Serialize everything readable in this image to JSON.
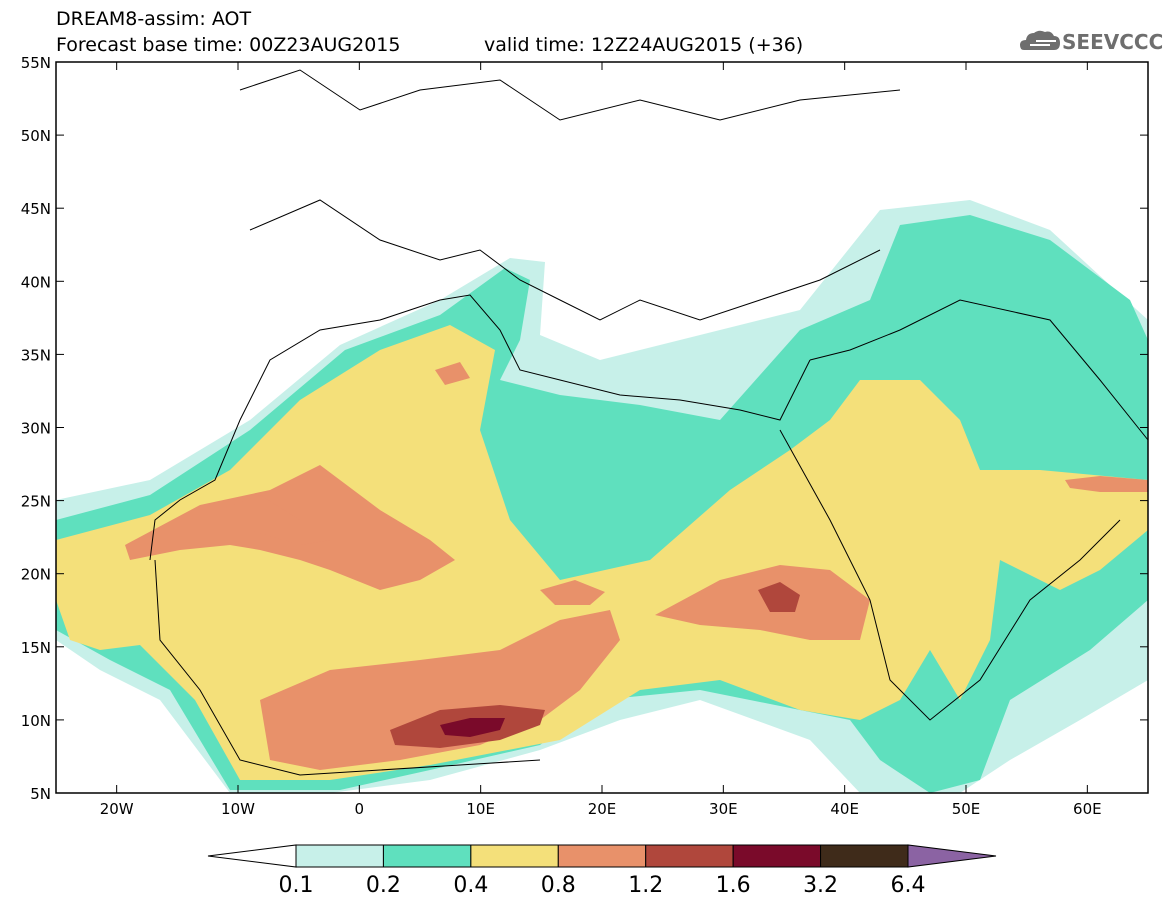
{
  "header": {
    "title_line1": "DREAM8-assim: AOT",
    "title_line2": "Forecast base time: 00Z23AUG2015",
    "title_line2b": "valid time: 12Z24AUG2015 (+36)",
    "logo_text": "SEEVCCC"
  },
  "map": {
    "lat_labels": [
      "55N",
      "50N",
      "45N",
      "40N",
      "35N",
      "30N",
      "25N",
      "20N",
      "15N",
      "10N",
      "5N"
    ],
    "lon_labels": [
      "20W",
      "10W",
      "0",
      "10E",
      "20E",
      "30E",
      "40E",
      "50E",
      "60E"
    ],
    "extent": {
      "lon_min": -25,
      "lon_max": 65,
      "lat_min": 5,
      "lat_max": 55
    }
  },
  "colorbar": {
    "levels": [
      "0.1",
      "0.2",
      "0.4",
      "0.8",
      "1.2",
      "1.6",
      "3.2",
      "6.4"
    ],
    "colors": [
      "#ffffff",
      "#c7f0e9",
      "#5fe0be",
      "#f4e07a",
      "#e8916a",
      "#b0473c",
      "#7a0a2a",
      "#3f2b1a",
      "#8b63a3"
    ]
  },
  "colors": {
    "c01": "#c7f0e9",
    "c02": "#5fe0be",
    "c04": "#f4e07a",
    "c08": "#e8916a",
    "c12": "#b0473c",
    "c16": "#7a0a2a"
  }
}
